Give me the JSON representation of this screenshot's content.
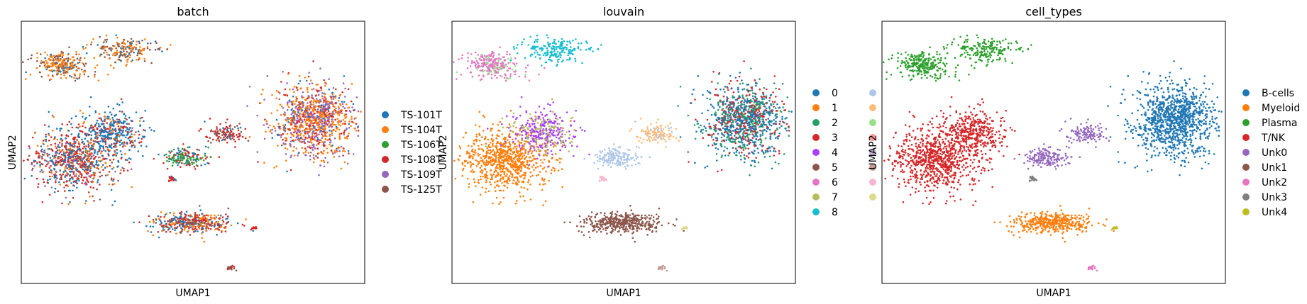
{
  "chart_data": [
    {
      "type": "scatter",
      "title": "batch",
      "xlabel": "UMAP1",
      "ylabel": "UMAP2",
      "grid": false,
      "legend": "right, outside plot",
      "legend_columns": 1,
      "series": [
        {
          "name": "TS-101T",
          "color": "#1f77b4"
        },
        {
          "name": "TS-104T",
          "color": "#ff7f0e"
        },
        {
          "name": "TS-106T",
          "color": "#2ca02c"
        },
        {
          "name": "TS-108T",
          "color": "#d62728"
        },
        {
          "name": "TS-109T",
          "color": "#9467bd"
        },
        {
          "name": "TS-125T",
          "color": "#8c564b"
        }
      ]
    },
    {
      "type": "scatter",
      "title": "louvain",
      "xlabel": "UMAP1",
      "ylabel": "UMAP2",
      "grid": false,
      "legend": "right, outside plot",
      "legend_columns": 2,
      "series": [
        {
          "name": "0",
          "color": "#1f77b4"
        },
        {
          "name": "1",
          "color": "#ff7f0e"
        },
        {
          "name": "2",
          "color": "#279e68"
        },
        {
          "name": "3",
          "color": "#d62728"
        },
        {
          "name": "4",
          "color": "#aa40fc"
        },
        {
          "name": "5",
          "color": "#8c564b"
        },
        {
          "name": "6",
          "color": "#e377c2"
        },
        {
          "name": "7",
          "color": "#b5bd61"
        },
        {
          "name": "8",
          "color": "#17becf"
        },
        {
          "name": "",
          "color": "#aec7e8"
        },
        {
          "name": "",
          "color": "#ffbb78"
        },
        {
          "name": "",
          "color": "#98df8a"
        },
        {
          "name": "",
          "color": "#ff9896"
        },
        {
          "name": "",
          "color": "#c5b0d5"
        },
        {
          "name": "",
          "color": "#c49c94"
        },
        {
          "name": "",
          "color": "#f7b6d2"
        },
        {
          "name": "",
          "color": "#dbdb8d"
        }
      ]
    },
    {
      "type": "scatter",
      "title": "cell_types",
      "xlabel": "UMAP1",
      "ylabel": "UMAP2",
      "grid": false,
      "legend": "right, outside plot",
      "legend_columns": 1,
      "series": [
        {
          "name": "B-cells",
          "color": "#1f77b4"
        },
        {
          "name": "Myeloid",
          "color": "#ff7f0e"
        },
        {
          "name": "Plasma",
          "color": "#2ca02c"
        },
        {
          "name": "T/NK",
          "color": "#d62728"
        },
        {
          "name": "Unk0",
          "color": "#9467bd"
        },
        {
          "name": "Unk1",
          "color": "#8c564b"
        },
        {
          "name": "Unk2",
          "color": "#e377c2"
        },
        {
          "name": "Unk3",
          "color": "#7f7f7f"
        },
        {
          "name": "Unk4",
          "color": "#bcbd22"
        }
      ]
    }
  ]
}
